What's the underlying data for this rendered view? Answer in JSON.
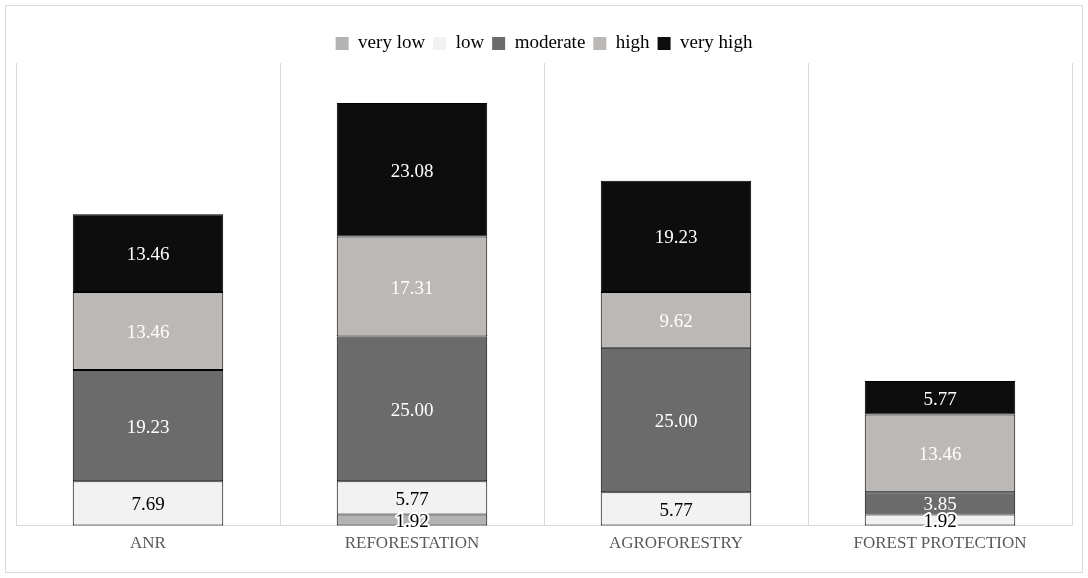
{
  "chart_data": {
    "type": "bar",
    "stacked": true,
    "categories": [
      "ANR",
      "REFORESTATION",
      "AGROFORESTRY",
      "FOREST PROTECTION"
    ],
    "series": [
      {
        "name": "very low",
        "color": "#b3b3b3",
        "values": [
          null,
          1.92,
          null,
          null
        ],
        "value_labels": [
          null,
          "1.92",
          null,
          null
        ]
      },
      {
        "name": "low",
        "color": "#f2f2f2",
        "values": [
          7.69,
          5.77,
          5.77,
          1.92
        ],
        "value_labels": [
          "7.69",
          "5.77",
          "5.77",
          "1.92"
        ]
      },
      {
        "name": "moderate",
        "color": "#6b6b6b",
        "values": [
          19.23,
          25.0,
          25.0,
          3.85
        ],
        "value_labels": [
          "19.23",
          "25.00",
          "25.00",
          "3.85"
        ]
      },
      {
        "name": "high",
        "color": "#bcb8b5",
        "values": [
          13.46,
          17.31,
          9.62,
          13.46
        ],
        "value_labels": [
          "13.46",
          "17.31",
          "9.62",
          "13.46"
        ]
      },
      {
        "name": "very high",
        "color": "#0d0d0d",
        "values": [
          13.46,
          23.08,
          19.23,
          5.77
        ],
        "value_labels": [
          "13.46",
          "23.08",
          "19.23",
          "5.77"
        ]
      }
    ],
    "grid": "x",
    "legend": "top"
  }
}
